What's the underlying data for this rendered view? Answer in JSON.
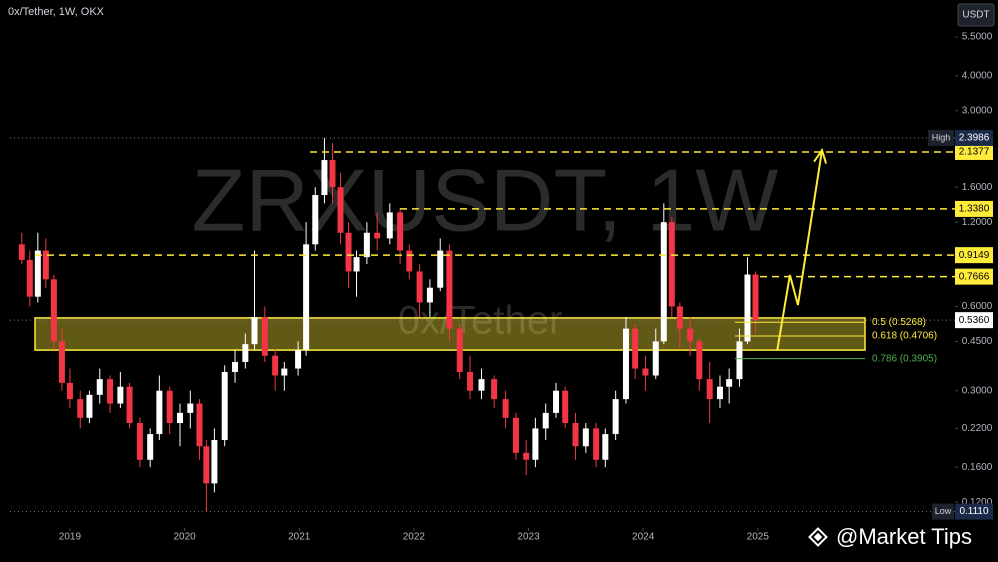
{
  "chart_data": {
    "type": "candlestick",
    "title": "0x/Tether, 1W, OKX",
    "watermark": "ZRXUSDT, 1W",
    "watermark_sub": "0x/Tether",
    "unit": "USDT",
    "footer": "@Market Tips",
    "log_scale": true,
    "up_color": "#ffffff",
    "down_color": "#f23645",
    "xlim": [
      2018.39,
      2026.72
    ],
    "xticks": [
      2019,
      2020,
      2021,
      2022,
      2023,
      2024,
      2025
    ],
    "ylim": [
      0.1019,
      7.46
    ],
    "yticks": [
      {
        "value": 5.5,
        "label": "5.5000"
      },
      {
        "value": 4,
        "label": "4.0000"
      },
      {
        "value": 3,
        "label": "3.0000"
      },
      {
        "value": 1.6,
        "label": "1.6000"
      },
      {
        "value": 1.2,
        "label": "1.2000"
      },
      {
        "value": 0.6,
        "label": "0.6000"
      },
      {
        "value": 0.45,
        "label": "0.4500"
      },
      {
        "value": 0.3,
        "label": "0.3000"
      },
      {
        "value": 0.22,
        "label": "0.2200"
      },
      {
        "value": 0.16,
        "label": "0.1600"
      },
      {
        "value": 0.12,
        "label": "0.1200"
      }
    ],
    "candles": {
      "x": [
        2018.58,
        2018.65,
        2018.72,
        2018.79,
        2018.86,
        2018.93,
        2019.0,
        2019.09,
        2019.17,
        2019.26,
        2019.35,
        2019.44,
        2019.52,
        2019.61,
        2019.7,
        2019.78,
        2019.87,
        2019.96,
        2020.05,
        2020.13,
        2020.19,
        2020.26,
        2020.35,
        2020.44,
        2020.53,
        2020.61,
        2020.7,
        2020.79,
        2020.87,
        2020.99,
        2021.06,
        2021.14,
        2021.22,
        2021.29,
        2021.36,
        2021.43,
        2021.5,
        2021.59,
        2021.68,
        2021.79,
        2021.88,
        2021.96,
        2022.05,
        2022.14,
        2022.23,
        2022.31,
        2022.4,
        2022.49,
        2022.59,
        2022.7,
        2022.8,
        2022.89,
        2022.98,
        2023.06,
        2023.15,
        2023.24,
        2023.32,
        2023.41,
        2023.5,
        2023.59,
        2023.67,
        2023.76,
        2023.85,
        2023.93,
        2024.02,
        2024.11,
        2024.18,
        2024.25,
        2024.32,
        2024.41,
        2024.49,
        2024.58,
        2024.67,
        2024.75,
        2024.84,
        2024.91,
        2024.98
      ],
      "open": [
        1.0,
        0.88,
        0.65,
        0.95,
        0.75,
        0.45,
        0.32,
        0.28,
        0.24,
        0.29,
        0.33,
        0.27,
        0.31,
        0.23,
        0.17,
        0.21,
        0.3,
        0.23,
        0.25,
        0.27,
        0.19,
        0.14,
        0.2,
        0.35,
        0.38,
        0.44,
        0.55,
        0.4,
        0.34,
        0.36,
        0.42,
        1.0,
        1.5,
        2.0,
        1.6,
        1.1,
        0.8,
        0.9,
        1.1,
        1.05,
        1.3,
        0.95,
        0.8,
        0.62,
        0.7,
        0.95,
        0.5,
        0.35,
        0.3,
        0.33,
        0.28,
        0.24,
        0.18,
        0.17,
        0.22,
        0.25,
        0.3,
        0.23,
        0.19,
        0.22,
        0.17,
        0.21,
        0.28,
        0.5,
        0.36,
        0.34,
        0.45,
        1.2,
        0.6,
        0.5,
        0.45,
        0.33,
        0.28,
        0.31,
        0.33,
        0.45,
        0.78
      ],
      "high": [
        1.1,
        0.95,
        1.1,
        1.05,
        0.78,
        0.5,
        0.36,
        0.3,
        0.3,
        0.36,
        0.34,
        0.35,
        0.32,
        0.24,
        0.22,
        0.34,
        0.31,
        0.27,
        0.3,
        0.28,
        0.2,
        0.22,
        0.37,
        0.42,
        0.48,
        0.95,
        0.6,
        0.42,
        0.38,
        0.45,
        1.2,
        1.6,
        2.3986,
        2.3,
        1.8,
        1.2,
        0.95,
        1.2,
        1.3,
        1.4,
        1.35,
        1.0,
        0.85,
        0.75,
        1.05,
        1.0,
        0.52,
        0.4,
        0.36,
        0.34,
        0.3,
        0.25,
        0.2,
        0.24,
        0.27,
        0.32,
        0.31,
        0.25,
        0.23,
        0.23,
        0.22,
        0.3,
        0.55,
        0.52,
        0.4,
        0.5,
        1.4,
        1.25,
        0.62,
        0.55,
        0.46,
        0.38,
        0.34,
        0.36,
        0.5,
        0.9,
        0.8
      ],
      "low": [
        0.85,
        0.6,
        0.62,
        0.7,
        0.42,
        0.3,
        0.26,
        0.22,
        0.23,
        0.27,
        0.25,
        0.26,
        0.22,
        0.16,
        0.16,
        0.2,
        0.21,
        0.19,
        0.22,
        0.17,
        0.111,
        0.13,
        0.19,
        0.32,
        0.36,
        0.42,
        0.38,
        0.3,
        0.3,
        0.34,
        0.4,
        0.95,
        1.4,
        1.4,
        1.0,
        0.7,
        0.65,
        0.85,
        0.95,
        1.0,
        0.85,
        0.75,
        0.55,
        0.55,
        0.68,
        0.45,
        0.33,
        0.28,
        0.28,
        0.26,
        0.22,
        0.17,
        0.15,
        0.16,
        0.2,
        0.24,
        0.22,
        0.17,
        0.18,
        0.16,
        0.16,
        0.2,
        0.27,
        0.33,
        0.3,
        0.33,
        0.44,
        0.55,
        0.42,
        0.4,
        0.3,
        0.23,
        0.26,
        0.27,
        0.31,
        0.44,
        0.48
      ],
      "close": [
        0.88,
        0.65,
        0.95,
        0.75,
        0.45,
        0.32,
        0.28,
        0.24,
        0.29,
        0.33,
        0.27,
        0.31,
        0.23,
        0.17,
        0.21,
        0.3,
        0.23,
        0.25,
        0.27,
        0.19,
        0.14,
        0.2,
        0.35,
        0.38,
        0.44,
        0.55,
        0.4,
        0.34,
        0.36,
        0.42,
        1.0,
        1.5,
        2.0,
        1.6,
        1.1,
        0.8,
        0.9,
        1.1,
        1.05,
        1.3,
        0.95,
        0.8,
        0.62,
        0.7,
        0.95,
        0.5,
        0.35,
        0.3,
        0.33,
        0.28,
        0.24,
        0.18,
        0.17,
        0.22,
        0.25,
        0.3,
        0.23,
        0.19,
        0.22,
        0.17,
        0.21,
        0.28,
        0.5,
        0.36,
        0.34,
        0.45,
        1.2,
        0.6,
        0.5,
        0.45,
        0.33,
        0.28,
        0.31,
        0.33,
        0.45,
        0.78,
        0.536
      ]
    },
    "high": {
      "text": "High",
      "value": 2.3986
    },
    "low": {
      "text": "Low",
      "value": 0.111,
      "label": "0.1110"
    },
    "last_price": {
      "value": 0.536,
      "label": "0.5360"
    },
    "levels": [
      {
        "value": 2.1377,
        "label": "2.1377"
      },
      {
        "value": 1.338,
        "label": "1.3380"
      },
      {
        "value": 0.9149,
        "label": "0.9149"
      },
      {
        "value": 0.7666,
        "label": "0.7666"
      }
    ],
    "level_color": "#ffeb3b",
    "zone": {
      "high": 0.546,
      "low": 0.419
    },
    "fib": [
      {
        "ratio": 0.5,
        "price": 0.5268,
        "label": "0.5 (0.5268)",
        "color": "#ffeb3b"
      },
      {
        "ratio": 0.618,
        "price": 0.4706,
        "label": "0.618 (0.4706)",
        "color": "#ffeb3b"
      },
      {
        "ratio": 0.786,
        "price": 0.3905,
        "label": "0.786 (0.3905)",
        "color": "#4caf50"
      }
    ],
    "projection": {
      "x": [
        2025.17,
        2025.28,
        2025.35,
        2025.56
      ],
      "y": [
        0.419,
        0.777,
        0.607,
        2.17
      ]
    }
  }
}
